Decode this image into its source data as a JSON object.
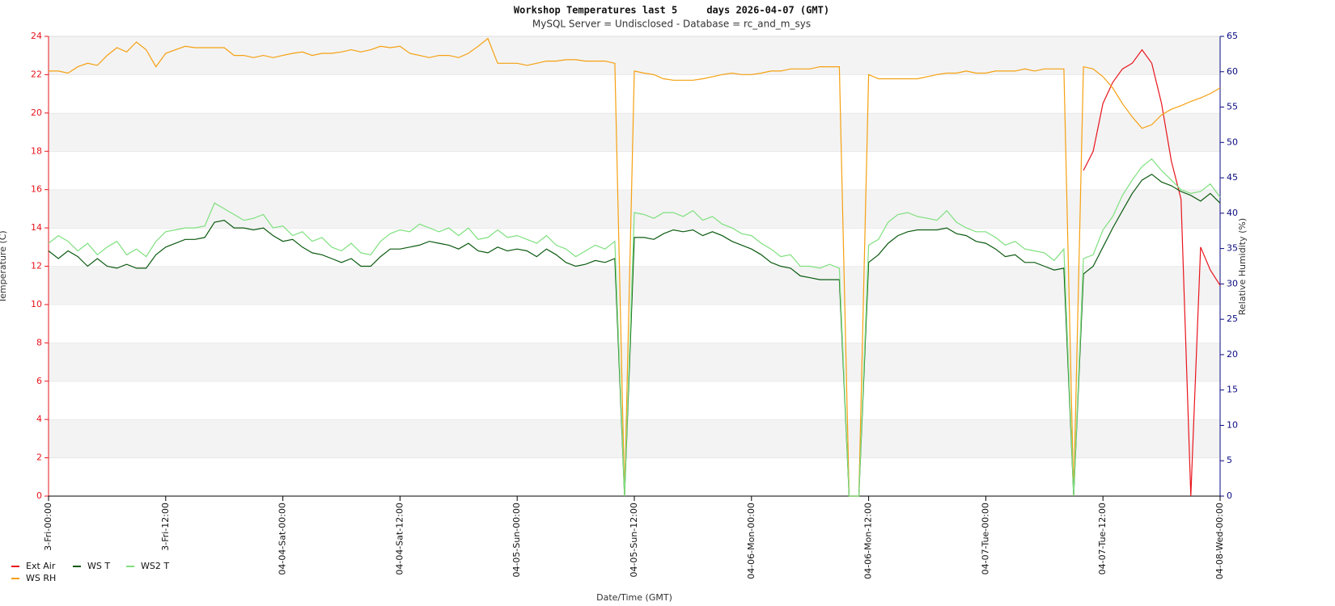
{
  "chart_data": {
    "type": "line",
    "title": "Workshop Temperatures last 5     days 2026-04-07 (GMT)",
    "subtitle": "MySQL Server = Undisclosed - Database = rc_and_m_sys",
    "xlabel": "Date/Time (GMT)",
    "ylabel": "Temperature (C)",
    "y2label": "Relative Humidity (%)",
    "x": [
      0,
      1,
      2,
      3,
      4,
      5,
      6,
      7,
      8,
      9,
      10,
      11,
      12,
      13,
      14,
      15,
      16,
      17,
      18,
      19,
      20,
      21,
      22,
      23,
      24,
      25,
      26,
      27,
      28,
      29,
      30,
      31,
      32,
      33,
      34,
      35,
      36,
      37,
      38,
      39,
      40,
      41,
      42,
      43,
      44,
      45,
      46,
      47,
      48,
      49,
      50,
      51,
      52,
      53,
      54,
      55,
      56,
      57,
      58,
      59,
      60,
      61,
      62,
      63,
      64,
      65,
      66,
      67,
      68,
      69,
      70,
      71,
      72,
      73,
      74,
      75,
      76,
      77,
      78,
      79,
      80,
      81,
      82,
      83,
      84,
      85,
      86,
      87,
      88,
      89,
      90,
      91,
      92,
      93,
      94,
      95,
      96,
      97,
      98,
      99,
      100,
      101,
      102,
      103,
      104,
      105,
      106,
      107,
      108,
      109,
      110,
      111,
      112,
      113,
      114,
      115,
      116,
      117,
      118,
      119,
      120
    ],
    "xlim": [
      0,
      120
    ],
    "xticks": [
      {
        "value": 0,
        "label": "3-Fri-00:00"
      },
      {
        "value": 12,
        "label": "3-Fri-12:00"
      },
      {
        "value": 24,
        "label": "04-04-Sat-00:00"
      },
      {
        "value": 36,
        "label": "04-04-Sat-12:00"
      },
      {
        "value": 48,
        "label": "04-05-Sun-00:00"
      },
      {
        "value": 60,
        "label": "04-05-Sun-12:00"
      },
      {
        "value": 72,
        "label": "04-06-Mon-00:00"
      },
      {
        "value": 84,
        "label": "04-06-Mon-12:00"
      },
      {
        "value": 96,
        "label": "04-07-Tue-00:00"
      },
      {
        "value": 108,
        "label": "04-07-Tue-12:00"
      },
      {
        "value": 120,
        "label": "04-08-Wed-00:00"
      }
    ],
    "ylim": [
      0,
      24
    ],
    "yticks": [
      0,
      2,
      4,
      6,
      8,
      10,
      12,
      14,
      16,
      18,
      20,
      22,
      24
    ],
    "y2lim": [
      0,
      65
    ],
    "y2ticks": [
      0,
      5,
      10,
      15,
      20,
      25,
      30,
      35,
      40,
      45,
      50,
      55,
      60,
      65
    ],
    "series": [
      {
        "name": "Ext Air",
        "color": "#e8141c",
        "axis": "y",
        "values": [
          null,
          null,
          null,
          null,
          null,
          null,
          null,
          null,
          null,
          null,
          null,
          null,
          null,
          null,
          null,
          null,
          null,
          null,
          null,
          null,
          null,
          null,
          null,
          null,
          null,
          null,
          null,
          null,
          null,
          null,
          null,
          null,
          null,
          null,
          null,
          null,
          null,
          null,
          null,
          null,
          null,
          null,
          null,
          null,
          null,
          null,
          null,
          null,
          null,
          null,
          null,
          null,
          null,
          null,
          null,
          null,
          null,
          null,
          null,
          null,
          null,
          null,
          null,
          null,
          null,
          null,
          null,
          null,
          null,
          null,
          null,
          null,
          null,
          null,
          null,
          null,
          null,
          null,
          null,
          null,
          null,
          null,
          null,
          null,
          null,
          null,
          null,
          null,
          null,
          null,
          null,
          null,
          null,
          null,
          null,
          null,
          null,
          null,
          null,
          null,
          null,
          null,
          null,
          null,
          null,
          null,
          17.0,
          18.0,
          20.5,
          21.6,
          22.3,
          22.6,
          23.3,
          22.6,
          20.5,
          17.5,
          15.5,
          0,
          13.0,
          11.8,
          11.0
        ]
      },
      {
        "name": "WS RH",
        "color": "#f5a010",
        "axis": "y2",
        "values": [
          60.1,
          60.1,
          59.8,
          60.7,
          61.2,
          60.9,
          62.3,
          63.4,
          62.8,
          64.2,
          63.1,
          60.7,
          62.6,
          63.1,
          63.6,
          63.4,
          63.4,
          63.4,
          63.4,
          62.3,
          62.3,
          62.0,
          62.3,
          62.0,
          62.3,
          62.6,
          62.8,
          62.3,
          62.6,
          62.6,
          62.8,
          63.1,
          62.8,
          63.1,
          63.6,
          63.4,
          63.6,
          62.6,
          62.3,
          62.0,
          62.3,
          62.3,
          62.0,
          62.6,
          63.6,
          64.7,
          61.2,
          61.2,
          61.2,
          60.9,
          61.2,
          61.5,
          61.5,
          61.7,
          61.7,
          61.5,
          61.5,
          61.5,
          61.2,
          0,
          60.1,
          59.8,
          59.6,
          59.0,
          58.8,
          58.8,
          58.8,
          59.0,
          59.3,
          59.6,
          59.8,
          59.6,
          59.6,
          59.8,
          60.1,
          60.1,
          60.4,
          60.4,
          60.4,
          60.7,
          60.7,
          60.7,
          0,
          0,
          59.6,
          59.0,
          59.0,
          59.0,
          59.0,
          59.0,
          59.3,
          59.6,
          59.8,
          59.8,
          60.1,
          59.8,
          59.8,
          60.1,
          60.1,
          60.1,
          60.4,
          60.1,
          60.4,
          60.4,
          60.4,
          0,
          60.7,
          60.4,
          59.3,
          57.7,
          55.5,
          53.6,
          52.0,
          52.5,
          53.9,
          54.7,
          55.2,
          55.8,
          56.3,
          56.9,
          57.7
        ]
      },
      {
        "name": "WS T",
        "color": "#0b5a10",
        "axis": "y",
        "values": [
          12.8,
          12.4,
          12.8,
          12.5,
          12.0,
          12.4,
          12.0,
          11.9,
          12.1,
          11.9,
          11.9,
          12.6,
          13.0,
          13.2,
          13.4,
          13.4,
          13.5,
          14.3,
          14.4,
          14.0,
          14.0,
          13.9,
          14.0,
          13.6,
          13.3,
          13.4,
          13.0,
          12.7,
          12.6,
          12.4,
          12.2,
          12.4,
          12.0,
          12.0,
          12.5,
          12.9,
          12.9,
          13.0,
          13.1,
          13.3,
          13.2,
          13.1,
          12.9,
          13.2,
          12.8,
          12.7,
          13.0,
          12.8,
          12.9,
          12.8,
          12.5,
          12.9,
          12.6,
          12.2,
          12.0,
          12.1,
          12.3,
          12.2,
          12.4,
          0,
          13.5,
          13.5,
          13.4,
          13.7,
          13.9,
          13.8,
          13.9,
          13.6,
          13.8,
          13.6,
          13.3,
          13.1,
          12.9,
          12.6,
          12.2,
          12.0,
          11.9,
          11.5,
          11.4,
          11.3,
          11.3,
          11.3,
          0,
          0,
          12.2,
          12.6,
          13.2,
          13.6,
          13.8,
          13.9,
          13.9,
          13.9,
          14.0,
          13.7,
          13.6,
          13.3,
          13.2,
          12.9,
          12.5,
          12.6,
          12.2,
          12.2,
          12.0,
          11.8,
          11.9,
          0,
          11.6,
          12.0,
          13.0,
          14.0,
          14.9,
          15.8,
          16.5,
          16.8,
          16.4,
          16.2,
          15.9,
          15.7,
          15.4,
          15.8,
          15.3
        ]
      },
      {
        "name": "WS2 T",
        "color": "#7fe07f",
        "axis": "y",
        "values": [
          13.2,
          13.6,
          13.3,
          12.8,
          13.2,
          12.6,
          13.0,
          13.3,
          12.6,
          12.9,
          12.5,
          13.3,
          13.8,
          13.9,
          14.0,
          14.0,
          14.1,
          15.3,
          15.0,
          14.7,
          14.4,
          14.5,
          14.7,
          14.0,
          14.1,
          13.6,
          13.8,
          13.3,
          13.5,
          13.0,
          12.8,
          13.2,
          12.7,
          12.6,
          13.3,
          13.7,
          13.9,
          13.8,
          14.2,
          14.0,
          13.8,
          14.0,
          13.6,
          14.0,
          13.4,
          13.5,
          13.9,
          13.5,
          13.6,
          13.4,
          13.2,
          13.6,
          13.1,
          12.9,
          12.5,
          12.8,
          13.1,
          12.9,
          13.3,
          0,
          14.8,
          14.7,
          14.5,
          14.8,
          14.8,
          14.6,
          14.9,
          14.4,
          14.6,
          14.2,
          14.0,
          13.7,
          13.6,
          13.2,
          12.9,
          12.5,
          12.6,
          12.0,
          12.0,
          11.9,
          12.1,
          11.9,
          0,
          0,
          13.1,
          13.4,
          14.3,
          14.7,
          14.8,
          14.6,
          14.5,
          14.4,
          14.9,
          14.3,
          14.0,
          13.8,
          13.8,
          13.5,
          13.1,
          13.3,
          12.9,
          12.8,
          12.7,
          12.3,
          12.9,
          0,
          12.4,
          12.6,
          13.9,
          14.6,
          15.7,
          16.5,
          17.2,
          17.6,
          17.0,
          16.5,
          16.0,
          15.8,
          15.9,
          16.3,
          15.6
        ]
      }
    ],
    "y_color": "#e8141c",
    "y2_color": "#0a0a80",
    "grid": "bands",
    "legend": "bottom-left"
  }
}
